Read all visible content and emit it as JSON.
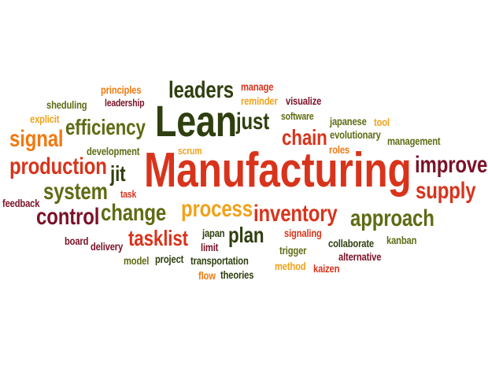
{
  "palette": {
    "dark_green": "#2f3f0f",
    "olive": "#5f6b13",
    "orange": "#f07a12",
    "red": "#d8341c",
    "maroon": "#7a1228",
    "amber": "#f0a21a"
  },
  "words": [
    {
      "text": "Manufacturing",
      "color": "red"
    },
    {
      "text": "Lean",
      "color": "dark_green"
    },
    {
      "text": "leaders",
      "color": "dark_green"
    },
    {
      "text": "just",
      "color": "dark_green"
    },
    {
      "text": "efficiency",
      "color": "olive"
    },
    {
      "text": "signal",
      "color": "orange"
    },
    {
      "text": "production",
      "color": "red"
    },
    {
      "text": "system",
      "color": "olive"
    },
    {
      "text": "jit",
      "color": "dark_green"
    },
    {
      "text": "control",
      "color": "maroon"
    },
    {
      "text": "change",
      "color": "olive"
    },
    {
      "text": "process",
      "color": "amber"
    },
    {
      "text": "inventory",
      "color": "red"
    },
    {
      "text": "approach",
      "color": "olive"
    },
    {
      "text": "improve",
      "color": "maroon"
    },
    {
      "text": "supply",
      "color": "red"
    },
    {
      "text": "chain",
      "color": "red"
    },
    {
      "text": "tasklist",
      "color": "red"
    },
    {
      "text": "plan",
      "color": "dark_green"
    },
    {
      "text": "principles",
      "color": "orange"
    },
    {
      "text": "leadership",
      "color": "maroon"
    },
    {
      "text": "sheduling",
      "color": "olive"
    },
    {
      "text": "explicit",
      "color": "amber"
    },
    {
      "text": "development",
      "color": "olive"
    },
    {
      "text": "scrum",
      "color": "amber"
    },
    {
      "text": "task",
      "color": "red"
    },
    {
      "text": "feedback",
      "color": "maroon"
    },
    {
      "text": "manage",
      "color": "red"
    },
    {
      "text": "reminder",
      "color": "amber"
    },
    {
      "text": "visualize",
      "color": "maroon"
    },
    {
      "text": "software",
      "color": "olive"
    },
    {
      "text": "japanese",
      "color": "olive"
    },
    {
      "text": "tool",
      "color": "amber"
    },
    {
      "text": "evolutionary",
      "color": "olive"
    },
    {
      "text": "roles",
      "color": "orange"
    },
    {
      "text": "management",
      "color": "olive"
    },
    {
      "text": "board",
      "color": "maroon"
    },
    {
      "text": "delivery",
      "color": "maroon"
    },
    {
      "text": "model",
      "color": "olive"
    },
    {
      "text": "project",
      "color": "dark_green"
    },
    {
      "text": "japan",
      "color": "dark_green"
    },
    {
      "text": "limit",
      "color": "maroon"
    },
    {
      "text": "transportation",
      "color": "dark_green"
    },
    {
      "text": "flow",
      "color": "orange"
    },
    {
      "text": "theories",
      "color": "dark_green"
    },
    {
      "text": "signaling",
      "color": "red"
    },
    {
      "text": "trigger",
      "color": "olive"
    },
    {
      "text": "collaborate",
      "color": "dark_green"
    },
    {
      "text": "kanban",
      "color": "olive"
    },
    {
      "text": "alternative",
      "color": "maroon"
    },
    {
      "text": "method",
      "color": "amber"
    },
    {
      "text": "kaizen",
      "color": "red"
    }
  ]
}
